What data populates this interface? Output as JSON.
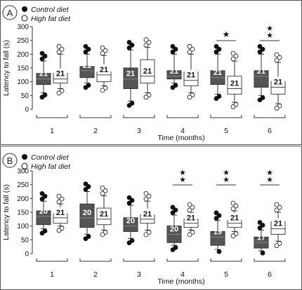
{
  "chart_data": [
    {
      "type": "box",
      "panel_label": "A",
      "legend": [
        {
          "marker": "filled-circle",
          "label": "Control diet",
          "color": "#555555"
        },
        {
          "marker": "open-circle",
          "label": "High fat diet",
          "color": "#ffffff"
        }
      ],
      "xlabel": "Time (months)",
      "ylabel": "Latency to fall (s)",
      "ylim": [
        0,
        300
      ],
      "yticks": [
        "0",
        "50",
        "100",
        "150",
        "200",
        "250",
        "300"
      ],
      "categories": [
        "1",
        "2",
        "3",
        "4",
        "5",
        "6"
      ],
      "significance": [
        "",
        "",
        "",
        "",
        "★",
        "★★"
      ],
      "series": [
        {
          "name": "Control diet",
          "n_labels": [
            "21",
            "21",
            "21",
            "21",
            "21",
            "21"
          ],
          "boxes": [
            {
              "min": 60,
              "q1": 90,
              "median": 110,
              "q3": 130,
              "max": 175
            },
            {
              "min": 95,
              "q1": 115,
              "median": 140,
              "q3": 155,
              "max": 200
            },
            {
              "min": 30,
              "q1": 75,
              "median": 110,
              "q3": 150,
              "max": 215
            },
            {
              "min": 95,
              "q1": 110,
              "median": 120,
              "q3": 140,
              "max": 200
            },
            {
              "min": 55,
              "q1": 90,
              "median": 115,
              "q3": 140,
              "max": 200
            },
            {
              "min": 50,
              "q1": 80,
              "median": 120,
              "q3": 140,
              "max": 200
            }
          ]
        },
        {
          "name": "High fat diet",
          "n_labels": [
            "21",
            "21",
            "21",
            "21",
            "21",
            "21"
          ],
          "boxes": [
            {
              "min": 75,
              "q1": 95,
              "median": 110,
              "q3": 130,
              "max": 200
            },
            {
              "min": 85,
              "q1": 100,
              "median": 125,
              "q3": 135,
              "max": 195
            },
            {
              "min": 60,
              "q1": 95,
              "median": 120,
              "q3": 180,
              "max": 225
            },
            {
              "min": 60,
              "q1": 85,
              "median": 105,
              "q3": 135,
              "max": 200
            },
            {
              "min": 25,
              "q1": 55,
              "median": 75,
              "q3": 120,
              "max": 175
            },
            {
              "min": 20,
              "q1": 55,
              "median": 80,
              "q3": 100,
              "max": 170
            }
          ]
        }
      ]
    },
    {
      "type": "box",
      "panel_label": "B",
      "legend": [
        {
          "marker": "filled-circle",
          "label": "Control diet",
          "color": "#555555"
        },
        {
          "marker": "open-circle",
          "label": "High fat diet",
          "color": "#ffffff"
        }
      ],
      "xlabel": "Time (months)",
      "ylabel": "Latency to fall (s)",
      "ylim": [
        0,
        300
      ],
      "yticks": [
        "0",
        "50",
        "100",
        "150",
        "200",
        "250",
        "300"
      ],
      "categories": [
        "1",
        "2",
        "3",
        "4",
        "5",
        "6"
      ],
      "significance": [
        "",
        "",
        "",
        "★★",
        "★★",
        "★★"
      ],
      "series": [
        {
          "name": "Control diet",
          "n_labels": [
            "20",
            "20",
            "20",
            "20",
            "19",
            "17"
          ],
          "boxes": [
            {
              "min": 90,
              "q1": 105,
              "median": 135,
              "q3": 155,
              "max": 190
            },
            {
              "min": 70,
              "q1": 95,
              "median": 130,
              "q3": 180,
              "max": 225
            },
            {
              "min": 55,
              "q1": 80,
              "median": 100,
              "q3": 130,
              "max": 175
            },
            {
              "min": 30,
              "q1": 40,
              "median": 70,
              "q3": 100,
              "max": 140
            },
            {
              "min": 15,
              "q1": 30,
              "median": 60,
              "q3": 80,
              "max": 120
            },
            {
              "min": 10,
              "q1": 20,
              "median": 40,
              "q3": 60,
              "max": 85
            }
          ]
        },
        {
          "name": "High fat diet",
          "n_labels": [
            "21",
            "21",
            "21",
            "21",
            "21",
            "21"
          ],
          "boxes": [
            {
              "min": 100,
              "q1": 110,
              "median": 130,
              "q3": 145,
              "max": 180
            },
            {
              "min": 85,
              "q1": 105,
              "median": 125,
              "q3": 165,
              "max": 210
            },
            {
              "min": 85,
              "q1": 110,
              "median": 125,
              "q3": 140,
              "max": 190
            },
            {
              "min": 85,
              "q1": 95,
              "median": 110,
              "q3": 125,
              "max": 150
            },
            {
              "min": 80,
              "q1": 95,
              "median": 110,
              "q3": 120,
              "max": 155
            },
            {
              "min": 45,
              "q1": 70,
              "median": 90,
              "q3": 115,
              "max": 150
            }
          ]
        }
      ]
    }
  ]
}
